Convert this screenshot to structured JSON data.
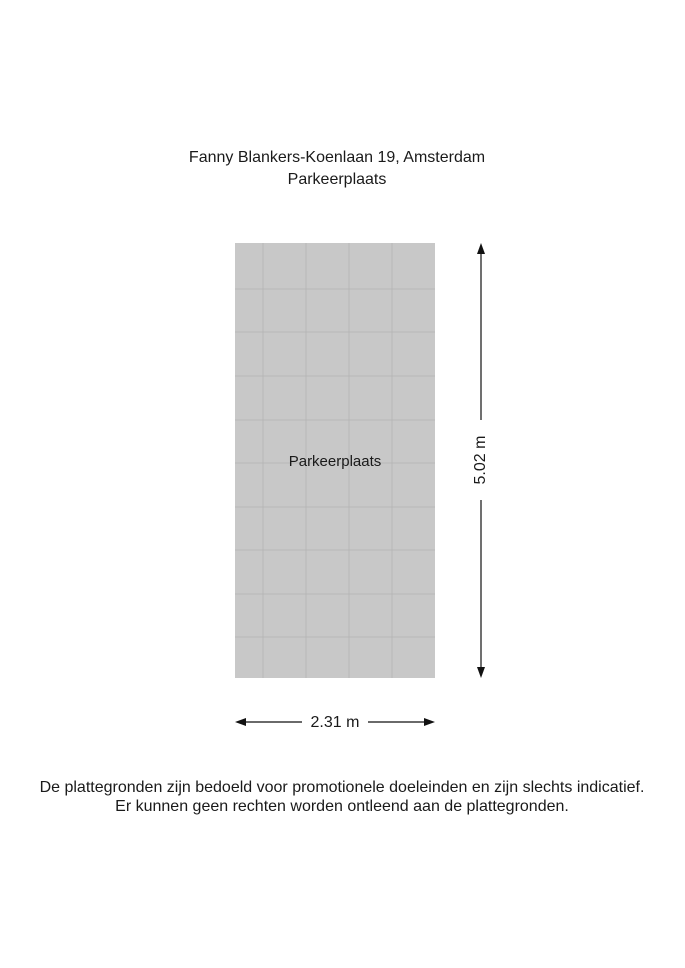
{
  "header": {
    "address": "Fanny Blankers-Koenlaan 19, Amsterdam",
    "floor": "Parkeerplaats"
  },
  "room": {
    "label": "Parkeerplaats"
  },
  "dimensions": {
    "width": "2.31 m",
    "height": "5.02 m"
  },
  "disclaimer": {
    "lines": [
      "De plattegronden zijn bedoeld voor promotionele doeleinden en zijn slechts indicatief.",
      "Er kunnen geen rechten worden ontleend aan de plattegronden."
    ]
  }
}
